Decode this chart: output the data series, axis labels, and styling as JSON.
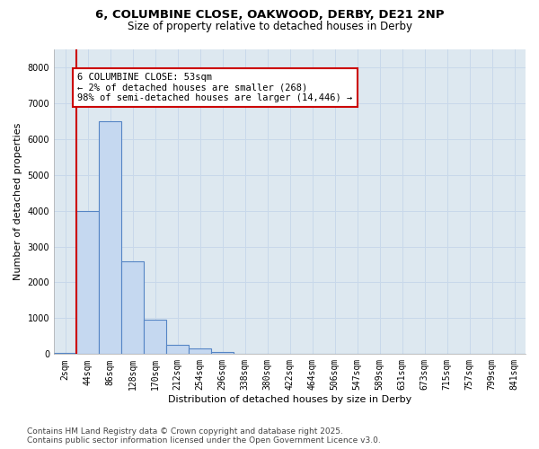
{
  "title_line1": "6, COLUMBINE CLOSE, OAKWOOD, DERBY, DE21 2NP",
  "title_line2": "Size of property relative to detached houses in Derby",
  "xlabel": "Distribution of detached houses by size in Derby",
  "ylabel": "Number of detached properties",
  "categories": [
    "2sqm",
    "44sqm",
    "86sqm",
    "128sqm",
    "170sqm",
    "212sqm",
    "254sqm",
    "296sqm",
    "338sqm",
    "380sqm",
    "422sqm",
    "464sqm",
    "506sqm",
    "547sqm",
    "589sqm",
    "631sqm",
    "673sqm",
    "715sqm",
    "757sqm",
    "799sqm",
    "841sqm"
  ],
  "values": [
    30,
    4000,
    6500,
    2600,
    950,
    270,
    160,
    50,
    10,
    5,
    0,
    0,
    0,
    0,
    0,
    0,
    0,
    0,
    0,
    0,
    0
  ],
  "bar_color": "#c5d8f0",
  "bar_edge_color": "#5585c5",
  "vline_color": "#cc0000",
  "annotation_text": "6 COLUMBINE CLOSE: 53sqm\n← 2% of detached houses are smaller (268)\n98% of semi-detached houses are larger (14,446) →",
  "annotation_box_color": "#cc0000",
  "ylim": [
    0,
    8500
  ],
  "yticks": [
    0,
    1000,
    2000,
    3000,
    4000,
    5000,
    6000,
    7000,
    8000
  ],
  "grid_color": "#c8d8ea",
  "bg_color": "#dde8f0",
  "footer_text": "Contains HM Land Registry data © Crown copyright and database right 2025.\nContains public sector information licensed under the Open Government Licence v3.0.",
  "title_fontsize": 9.5,
  "subtitle_fontsize": 8.5,
  "axis_label_fontsize": 8,
  "tick_fontsize": 7,
  "annotation_fontsize": 7.5,
  "footer_fontsize": 6.5
}
